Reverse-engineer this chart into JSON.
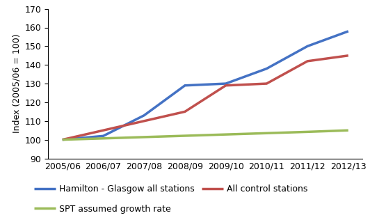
{
  "x_labels": [
    "2005/06",
    "2006/07",
    "2007/08",
    "2008/09",
    "2009/10",
    "2010/11",
    "2011/12",
    "2012/13"
  ],
  "series": [
    {
      "label": "Hamilton - Glasgow all stations",
      "values": [
        100,
        102,
        113,
        129,
        130,
        138,
        150,
        158
      ],
      "color": "#4472C4",
      "linewidth": 2.5
    },
    {
      "label": "All control stations",
      "values": [
        100,
        105,
        110,
        115,
        129,
        130,
        142,
        145
      ],
      "color": "#C0504D",
      "linewidth": 2.5
    },
    {
      "label": "SPT assumed growth rate",
      "values": [
        100,
        100.7,
        101.4,
        102.1,
        102.8,
        103.5,
        104.2,
        105.0
      ],
      "color": "#9BBB59",
      "linewidth": 2.5
    }
  ],
  "ylabel": "Index (2005/06 = 100)",
  "ylim": [
    90,
    170
  ],
  "yticks": [
    90,
    100,
    110,
    120,
    130,
    140,
    150,
    160,
    170
  ],
  "background_color": "#FFFFFF",
  "tick_fontsize": 9,
  "label_fontsize": 9,
  "legend_fontsize": 9
}
